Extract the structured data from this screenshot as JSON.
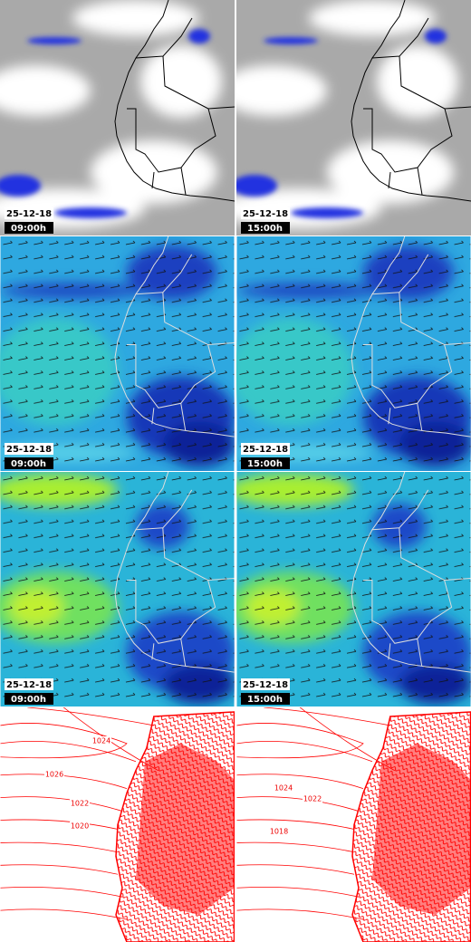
{
  "panels": [
    {
      "date": "25-12-18",
      "time": "09:00h"
    },
    {
      "date": "25-12-18",
      "time": "15:00h"
    },
    {
      "date": "25-12-18",
      "time": "09:00h"
    },
    {
      "date": "25-12-18",
      "time": "15:00h"
    },
    {
      "date": "25-12-18",
      "time": "09:00h"
    },
    {
      "date": "25-12-18",
      "time": "15:00h"
    }
  ],
  "pressure_panels": [
    {
      "labels": [
        "1024",
        "1026",
        "1022",
        "1020"
      ]
    },
    {
      "labels": [
        "1024",
        "1022",
        "1018"
      ]
    }
  ]
}
